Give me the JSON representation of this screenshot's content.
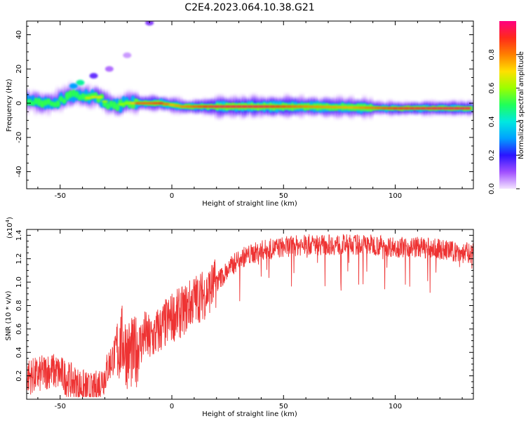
{
  "figure_title": "C2E4.2023.064.10.38.G21",
  "chart_data": [
    {
      "type": "heatmap",
      "title": "C2E4.2023.064.10.38.G21",
      "xlabel": "Height of straight line (km)",
      "ylabel": "Frequency (Hz)",
      "xlim": [
        -65,
        135
      ],
      "ylim": [
        -50,
        48
      ],
      "x_ticks": [
        -50,
        0,
        50,
        100
      ],
      "y_ticks": [
        -40,
        -20,
        0,
        20,
        40
      ],
      "x_tick_labels": [
        "-50",
        "0",
        "50",
        "100"
      ],
      "y_tick_labels": [
        "-40",
        "-20",
        "0",
        "20",
        "40"
      ],
      "grid": false,
      "colorbar": {
        "label": "Normalized spectral amplitude",
        "range": [
          0,
          1
        ],
        "ticks": [
          0.0,
          0.2,
          0.4,
          0.6,
          0.8
        ],
        "tick_labels": [
          "0.0",
          "0.2",
          "0.4",
          "0.6",
          "0.8"
        ],
        "colors": [
          "#f4e4ff",
          "#a04fff",
          "#2a14ff",
          "#00a0ff",
          "#00e8e0",
          "#1fff5a",
          "#9bff00",
          "#ffe000",
          "#ff8000",
          "#ff2a1a",
          "#ff0080"
        ]
      },
      "ridge": {
        "x": [
          -63,
          -58,
          -52,
          -46,
          -42,
          -38,
          -33,
          -28,
          -24,
          -20,
          -15,
          -10,
          -5,
          0,
          5,
          10,
          20,
          40,
          60,
          80,
          100,
          120,
          135
        ],
        "y": [
          1.5,
          -1,
          0.5,
          4,
          5,
          3,
          4,
          -1,
          -1,
          0,
          0,
          0,
          0,
          -1,
          -2,
          -2,
          -2,
          -2,
          -2,
          -2.5,
          -3,
          -3,
          -3
        ],
        "amplitude": [
          0.45,
          0.6,
          0.55,
          0.6,
          0.5,
          0.65,
          0.7,
          0.55,
          0.6,
          0.6,
          0.85,
          0.85,
          0.9,
          0.75,
          0.8,
          0.85,
          0.95,
          0.95,
          0.8,
          0.75,
          0.9,
          0.95,
          0.95
        ]
      }
    },
    {
      "type": "line",
      "xlabel": "Height of straight line (km)",
      "ylabel": "SNR (10 * v/v)",
      "y_scale_label": "(x10",
      "y_scale_exp": "4",
      "xlim": [
        -65,
        135
      ],
      "ylim": [
        0,
        1.45
      ],
      "x_ticks": [
        -50,
        0,
        50,
        100
      ],
      "y_ticks": [
        0.2,
        0.4,
        0.6,
        0.8,
        1.0,
        1.2,
        1.4
      ],
      "x_tick_labels": [
        "-50",
        "0",
        "50",
        "100"
      ],
      "y_tick_labels": [
        "0.2",
        "0.4",
        "0.6",
        "0.8",
        "1.0",
        "1.2",
        "1.4"
      ],
      "grid": false,
      "series": [
        {
          "color": "#ee3333",
          "x": [
            -65,
            -60,
            -55,
            -50,
            -45,
            -40,
            -35,
            -32,
            -30,
            -28,
            -25,
            -22,
            -20,
            -17,
            -15,
            -12,
            -10,
            -5,
            0,
            5,
            10,
            15,
            20,
            25,
            30,
            40,
            50,
            60,
            70,
            80,
            90,
            100,
            110,
            120,
            130,
            135
          ],
          "y": [
            0.2,
            0.2,
            0.25,
            0.22,
            0.15,
            0.1,
            0.06,
            0.15,
            0.2,
            0.3,
            0.4,
            0.5,
            0.4,
            0.38,
            0.45,
            0.55,
            0.5,
            0.6,
            0.7,
            0.75,
            0.85,
            0.9,
            1.0,
            1.1,
            1.2,
            1.27,
            1.3,
            1.32,
            1.32,
            1.32,
            1.32,
            1.3,
            1.3,
            1.28,
            1.25,
            1.25
          ]
        }
      ]
    }
  ]
}
